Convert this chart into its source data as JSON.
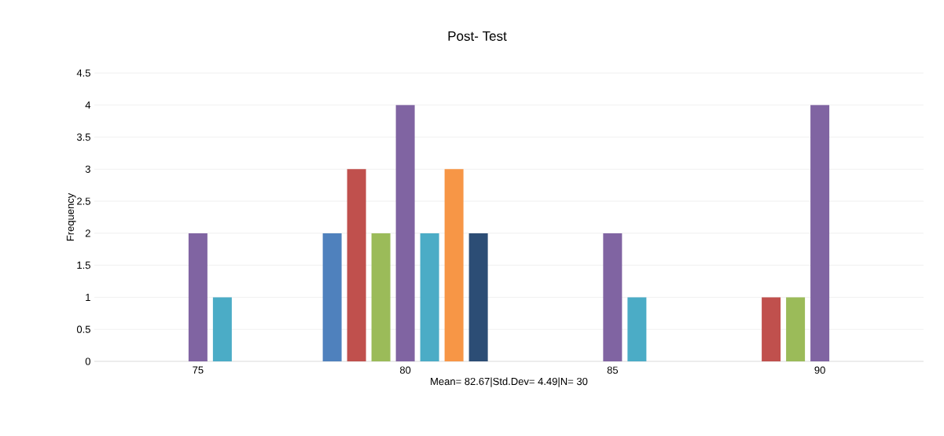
{
  "chart_data": {
    "type": "bar",
    "title": "Post- Test",
    "xlabel": "Mean= 82.67|Std.Dev= 4.49|N= 30",
    "ylabel": "Frequency",
    "categories": [
      "75",
      "80",
      "85",
      "90"
    ],
    "series": [
      {
        "color": "#4f81bd",
        "values": [
          null,
          2,
          null,
          null
        ]
      },
      {
        "color": "#c0504d",
        "values": [
          null,
          3,
          null,
          1
        ]
      },
      {
        "color": "#9bbb59",
        "values": [
          null,
          2,
          null,
          1
        ]
      },
      {
        "color": "#8064a2",
        "values": [
          2,
          4,
          2,
          4
        ]
      },
      {
        "color": "#4bacc6",
        "values": [
          1,
          2,
          1,
          null
        ]
      },
      {
        "color": "#f79646",
        "values": [
          null,
          3,
          null,
          null
        ]
      },
      {
        "color": "#2c4d75",
        "values": [
          null,
          2,
          null,
          null
        ]
      }
    ],
    "ylim": [
      0,
      4.5
    ],
    "yticks": [
      0,
      0.5,
      1,
      1.5,
      2,
      2.5,
      3,
      3.5,
      4,
      4.5
    ],
    "grid": "y"
  }
}
